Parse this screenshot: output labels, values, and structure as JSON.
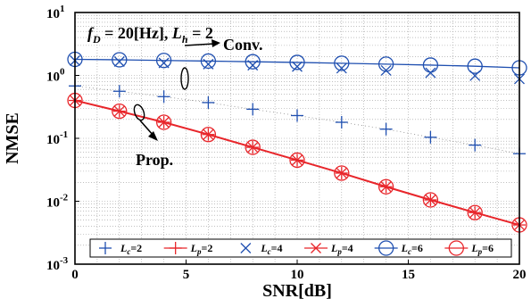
{
  "chart_data": {
    "type": "line",
    "title": "",
    "annotation_title": "f_D = 20[Hz], L_h = 2",
    "xlabel": "SNR[dB]",
    "ylabel": "NMSE",
    "xlim": [
      0,
      20
    ],
    "ylim": [
      0.001,
      10
    ],
    "yscale": "log",
    "grid": true,
    "legend_position": "bottom",
    "x_ticks": [
      "0",
      "5",
      "10",
      "15",
      "20"
    ],
    "y_ticks": [
      {
        "base": "10",
        "exp": "-3"
      },
      {
        "base": "10",
        "exp": "-2"
      },
      {
        "base": "10",
        "exp": "-1"
      },
      {
        "base": "10",
        "exp": "0"
      },
      {
        "base": "10",
        "exp": "1"
      }
    ],
    "annotations": [
      "Conv.",
      "Prop."
    ],
    "x": [
      0,
      2,
      4,
      6,
      8,
      10,
      12,
      14,
      16,
      18,
      20
    ],
    "series": [
      {
        "name": "Lc=2",
        "label_main": "L",
        "label_sub": "c",
        "label_tail": "=2",
        "color": "#1f4fb0",
        "marker": "plus",
        "line": false,
        "values": [
          0.68,
          0.56,
          0.46,
          0.37,
          0.29,
          0.23,
          0.18,
          0.14,
          0.104,
          0.078,
          0.057
        ]
      },
      {
        "name": "Lp=2",
        "label_main": "L",
        "label_sub": "p",
        "label_tail": "=2",
        "color": "#e8262b",
        "marker": "plus",
        "line": true,
        "values": [
          0.4,
          0.27,
          0.18,
          0.115,
          0.072,
          0.045,
          0.028,
          0.017,
          0.0105,
          0.0066,
          0.0042
        ]
      },
      {
        "name": "Lc=4",
        "label_main": "L",
        "label_sub": "c",
        "label_tail": "=4",
        "color": "#1f4fb0",
        "marker": "x",
        "line": false,
        "values": [
          1.72,
          1.66,
          1.58,
          1.51,
          1.45,
          1.38,
          1.3,
          1.2,
          1.1,
          0.99,
          0.88
        ]
      },
      {
        "name": "Lp=4",
        "label_main": "L",
        "label_sub": "p",
        "label_tail": "=4",
        "color": "#e8262b",
        "marker": "x",
        "line": true,
        "values": [
          0.4,
          0.27,
          0.18,
          0.115,
          0.072,
          0.045,
          0.028,
          0.017,
          0.0105,
          0.0066,
          0.0042
        ]
      },
      {
        "name": "Lc=6",
        "label_main": "L",
        "label_sub": "c",
        "label_tail": "=6",
        "color": "#1f4fb0",
        "marker": "circle",
        "line": true,
        "values": [
          1.8,
          1.77,
          1.73,
          1.69,
          1.65,
          1.61,
          1.56,
          1.51,
          1.46,
          1.4,
          1.32
        ]
      },
      {
        "name": "Lp=6",
        "label_main": "L",
        "label_sub": "p",
        "label_tail": "=6",
        "color": "#e8262b",
        "marker": "circle",
        "line": true,
        "values": [
          0.4,
          0.27,
          0.18,
          0.115,
          0.072,
          0.045,
          0.028,
          0.017,
          0.0105,
          0.0066,
          0.0042
        ]
      }
    ]
  }
}
